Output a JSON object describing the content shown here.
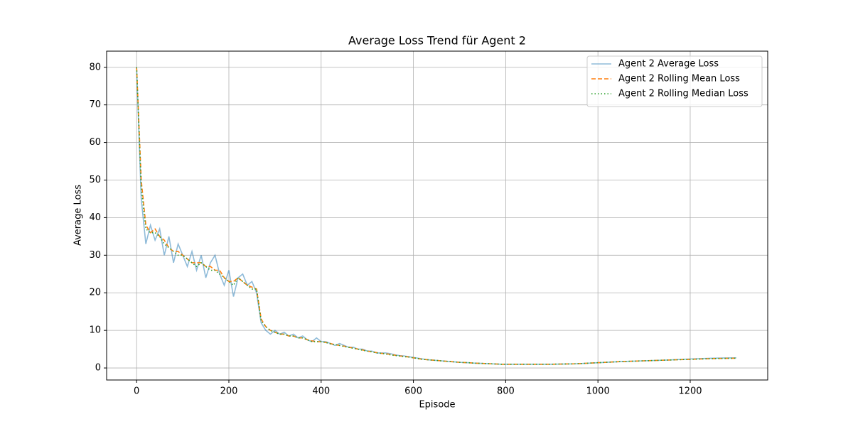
{
  "chart_data": {
    "type": "line",
    "title": "Average Loss Trend für Agent 2",
    "x_label": "Episode",
    "y_label": "Average Loss",
    "x": [
      0,
      10,
      20,
      30,
      40,
      50,
      60,
      70,
      80,
      90,
      100,
      110,
      120,
      130,
      140,
      150,
      160,
      170,
      180,
      190,
      200,
      210,
      220,
      230,
      240,
      250,
      260,
      270,
      280,
      290,
      300,
      310,
      320,
      330,
      340,
      350,
      360,
      370,
      380,
      390,
      400,
      410,
      420,
      430,
      440,
      450,
      460,
      470,
      480,
      490,
      500,
      510,
      520,
      530,
      540,
      550,
      560,
      570,
      580,
      590,
      600,
      610,
      620,
      630,
      640,
      650,
      660,
      670,
      680,
      690,
      700,
      710,
      720,
      730,
      740,
      750,
      760,
      770,
      780,
      790,
      800,
      850,
      900,
      950,
      1000,
      1050,
      1100,
      1150,
      1200,
      1250,
      1300
    ],
    "series": [
      {
        "name": "Agent 2 Average Loss",
        "color": "#1f77b4",
        "linestyle": "solid",
        "opacity": 0.5,
        "values": [
          80,
          45,
          33,
          38,
          34,
          37,
          30,
          35,
          28,
          33,
          30,
          27,
          31,
          26,
          30,
          24,
          28,
          30,
          25,
          22,
          26,
          19,
          24,
          25,
          22,
          23,
          20,
          12,
          10,
          9,
          10,
          9,
          9.5,
          8.5,
          9,
          8,
          8.5,
          7.5,
          7,
          8,
          7,
          7,
          6.5,
          6,
          6.5,
          6,
          5.5,
          5.5,
          5,
          5,
          4.5,
          4.5,
          4,
          4,
          4,
          3.8,
          3.5,
          3.3,
          3.2,
          3,
          2.8,
          2.6,
          2.4,
          2.2,
          2.1,
          2,
          1.9,
          1.8,
          1.7,
          1.6,
          1.5,
          1.45,
          1.4,
          1.3,
          1.25,
          1.2,
          1.15,
          1.1,
          1.05,
          1,
          1,
          1,
          1,
          1.1,
          1.4,
          1.7,
          1.9,
          2.1,
          2.4,
          2.6,
          2.7
        ]
      },
      {
        "name": "Agent 2 Rolling Mean Loss",
        "color": "#ff7f0e",
        "linestyle": "dashed",
        "opacity": 1,
        "values": [
          80,
          50,
          38,
          36,
          37,
          35,
          34,
          32,
          31,
          31,
          30,
          29,
          28,
          28,
          28,
          27,
          27,
          26,
          26,
          24,
          23,
          23,
          24,
          23,
          22,
          21.5,
          21,
          13,
          11,
          10,
          9.5,
          9,
          9,
          8.5,
          8.5,
          8,
          8,
          7.5,
          7.2,
          7,
          7,
          6.8,
          6.5,
          6.2,
          6,
          5.8,
          5.5,
          5.3,
          5,
          4.8,
          4.5,
          4.3,
          4.1,
          3.9,
          3.8,
          3.6,
          3.4,
          3.2,
          3.1,
          2.9,
          2.7,
          2.5,
          2.3,
          2.2,
          2.1,
          2,
          1.9,
          1.8,
          1.7,
          1.6,
          1.5,
          1.45,
          1.4,
          1.3,
          1.25,
          1.2,
          1.15,
          1.1,
          1.05,
          1,
          1,
          1,
          1,
          1.1,
          1.4,
          1.7,
          1.9,
          2.1,
          2.3,
          2.5,
          2.6
        ]
      },
      {
        "name": "Agent 2 Rolling Median Loss",
        "color": "#2ca02c",
        "linestyle": "dotted",
        "opacity": 1,
        "values": [
          80,
          48,
          37,
          36,
          36,
          35,
          33,
          32,
          31,
          30,
          30,
          29,
          28,
          27,
          28,
          27,
          26,
          26,
          25,
          24,
          23,
          22,
          24,
          23,
          22,
          21,
          21,
          12.5,
          11,
          10,
          9.5,
          9,
          9,
          8.5,
          8.5,
          8,
          8,
          7.5,
          7,
          7,
          7,
          6.8,
          6.4,
          6.2,
          6,
          5.7,
          5.5,
          5.2,
          5,
          4.7,
          4.5,
          4.3,
          4,
          3.9,
          3.7,
          3.5,
          3.3,
          3.2,
          3,
          2.9,
          2.7,
          2.5,
          2.3,
          2.2,
          2.1,
          2,
          1.9,
          1.8,
          1.7,
          1.6,
          1.5,
          1.45,
          1.4,
          1.3,
          1.25,
          1.2,
          1.15,
          1.1,
          1.05,
          1,
          1,
          1,
          1,
          1.1,
          1.4,
          1.7,
          1.9,
          2.1,
          2.3,
          2.5,
          2.6
        ]
      }
    ],
    "xlim": [
      -65,
      1368
    ],
    "ylim": [
      -3.2,
      84.3
    ],
    "xticks": [
      0,
      200,
      400,
      600,
      800,
      1000,
      1200
    ],
    "yticks": [
      0,
      10,
      20,
      30,
      40,
      50,
      60,
      70,
      80
    ],
    "grid": true,
    "legend": "upper right"
  }
}
